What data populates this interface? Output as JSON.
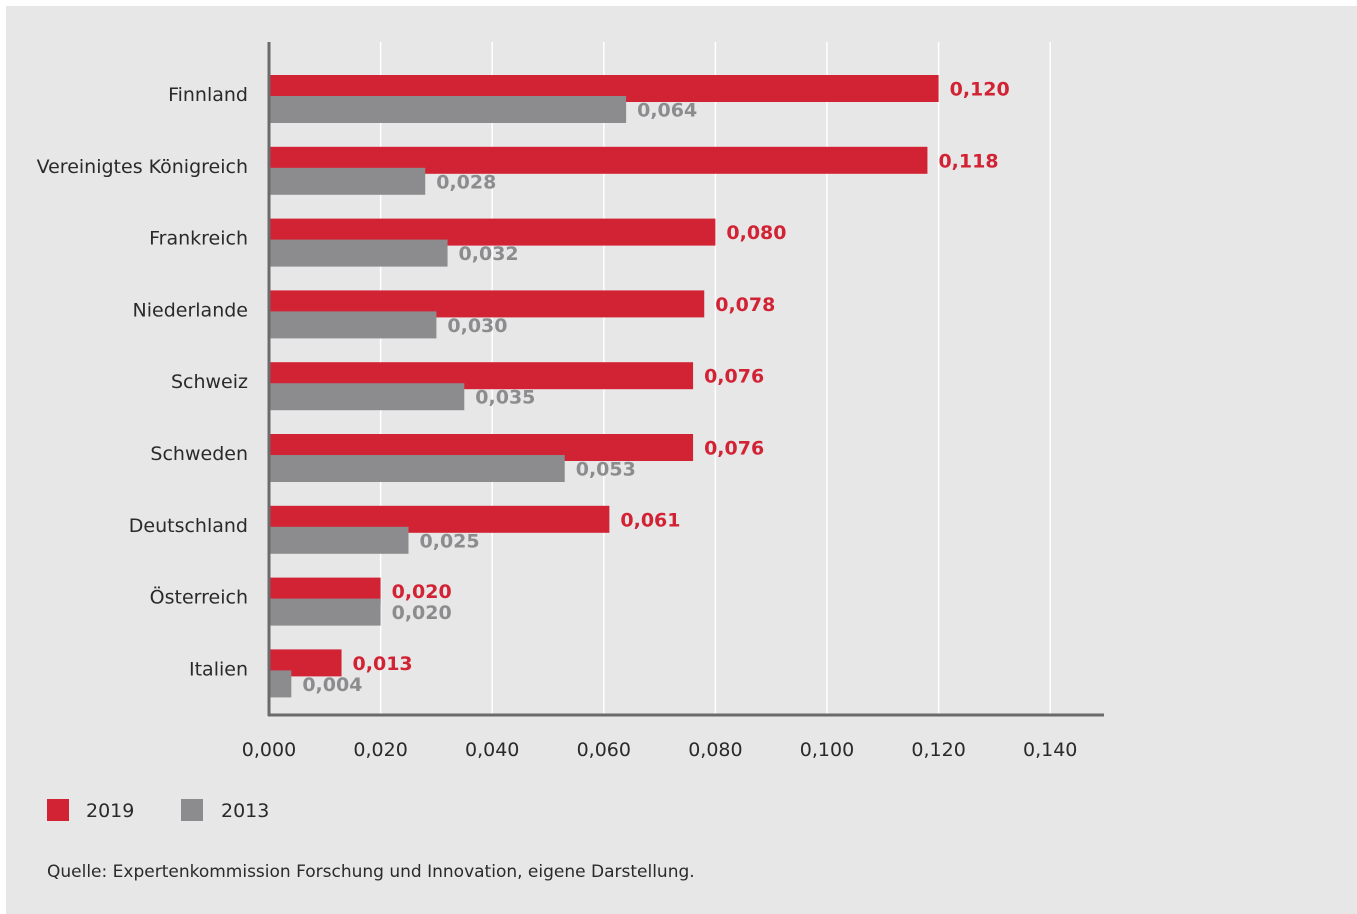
{
  "chart_data": {
    "type": "bar",
    "orientation": "horizontal",
    "categories": [
      "Finnland",
      "Vereinigtes Königreich",
      "Frankreich",
      "Niederlande",
      "Schweiz",
      "Schweden",
      "Deutschland",
      "Österreich",
      "Italien"
    ],
    "series": [
      {
        "name": "2019",
        "color": "#d22335",
        "values": [
          0.12,
          0.118,
          0.08,
          0.078,
          0.076,
          0.076,
          0.061,
          0.02,
          0.013
        ],
        "value_labels": [
          "0,120",
          "0,118",
          "0,080",
          "0,078",
          "0,076",
          "0,076",
          "0,061",
          "0,020",
          "0,013"
        ]
      },
      {
        "name": "2013",
        "color": "#8c8c8e",
        "values": [
          0.064,
          0.028,
          0.032,
          0.03,
          0.035,
          0.053,
          0.025,
          0.02,
          0.004
        ],
        "value_labels": [
          "0,064",
          "0,028",
          "0,032",
          "0,030",
          "0,035",
          "0,053",
          "0,025",
          "0,020",
          "0,004"
        ]
      }
    ],
    "xlim": [
      0,
      0.15
    ],
    "x_ticks": [
      0,
      0.02,
      0.04,
      0.06,
      0.08,
      0.1,
      0.12,
      0.14
    ],
    "x_tick_labels": [
      "0,000",
      "0,020",
      "0,040",
      "0,060",
      "0,080",
      "0,100",
      "0,120",
      "0,140"
    ],
    "grid": "vertical",
    "legend_position": "bottom-left",
    "title": "",
    "xlabel": "",
    "ylabel": ""
  },
  "source": "Quelle: Expertenkommission Forschung und Innovation, eigene Darstellung.",
  "colors": {
    "background": "#e7e7e8",
    "grid": "#ffffff",
    "axis": "#6b6b6b",
    "text": "#2a2a2a"
  }
}
